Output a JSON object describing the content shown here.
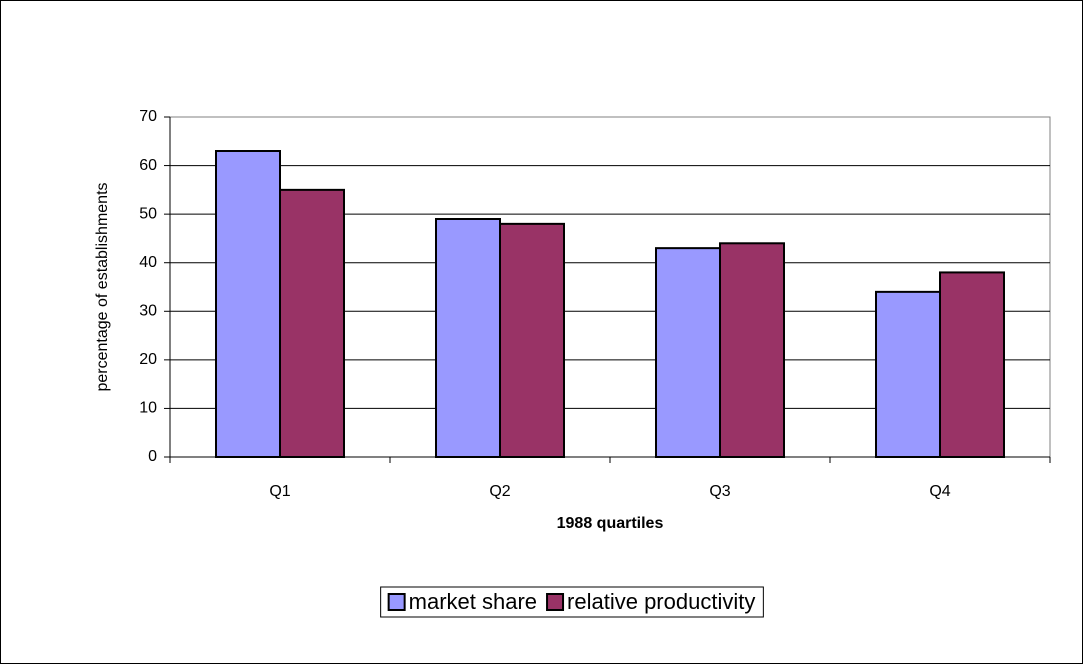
{
  "chart_data": {
    "type": "bar",
    "x_label": "1988 quartiles",
    "y_label": "percentage of establishments",
    "categories": [
      "Q1",
      "Q2",
      "Q3",
      "Q4"
    ],
    "series": [
      {
        "name": "market share",
        "color": "#9999ff",
        "values": [
          63,
          49,
          43,
          34
        ]
      },
      {
        "name": "relative productivity",
        "color": "#993366",
        "values": [
          55,
          48,
          44,
          38
        ]
      }
    ],
    "ylim": [
      0,
      70
    ],
    "yticks": [
      0,
      10,
      20,
      30,
      40,
      50,
      60,
      70
    ],
    "grid": true,
    "legend": "bottom"
  }
}
